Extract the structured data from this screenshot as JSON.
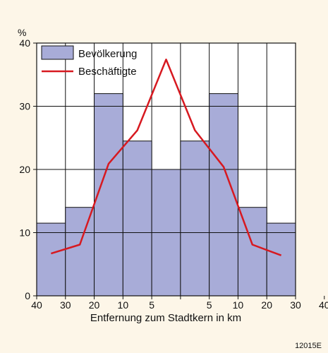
{
  "chart_data": {
    "type": "bar",
    "unit_label": "%",
    "xlabel": "Entfernung zum Stadtkern in km",
    "x_tick_labels": [
      "40",
      "30",
      "20",
      "10",
      "5",
      "",
      "5",
      "10",
      "20",
      "30",
      "40"
    ],
    "y_ticks": [
      0,
      10,
      20,
      30,
      40
    ],
    "ylim": [
      0,
      40
    ],
    "grid": true,
    "legend_position": "top-left",
    "series": [
      {
        "name": "Bevölkerung",
        "kind": "bar",
        "color": "#a8acd8",
        "values": [
          11.5,
          14,
          32,
          24.5,
          20,
          24.5,
          32,
          14,
          11.5
        ]
      },
      {
        "name": "Beschäftigte",
        "kind": "line",
        "color": "#d71920",
        "values": [
          6.7,
          8.1,
          20.9,
          26.2,
          37.4,
          26.2,
          20.4,
          8.1,
          6.4
        ]
      }
    ]
  },
  "figure_code": "12015E"
}
